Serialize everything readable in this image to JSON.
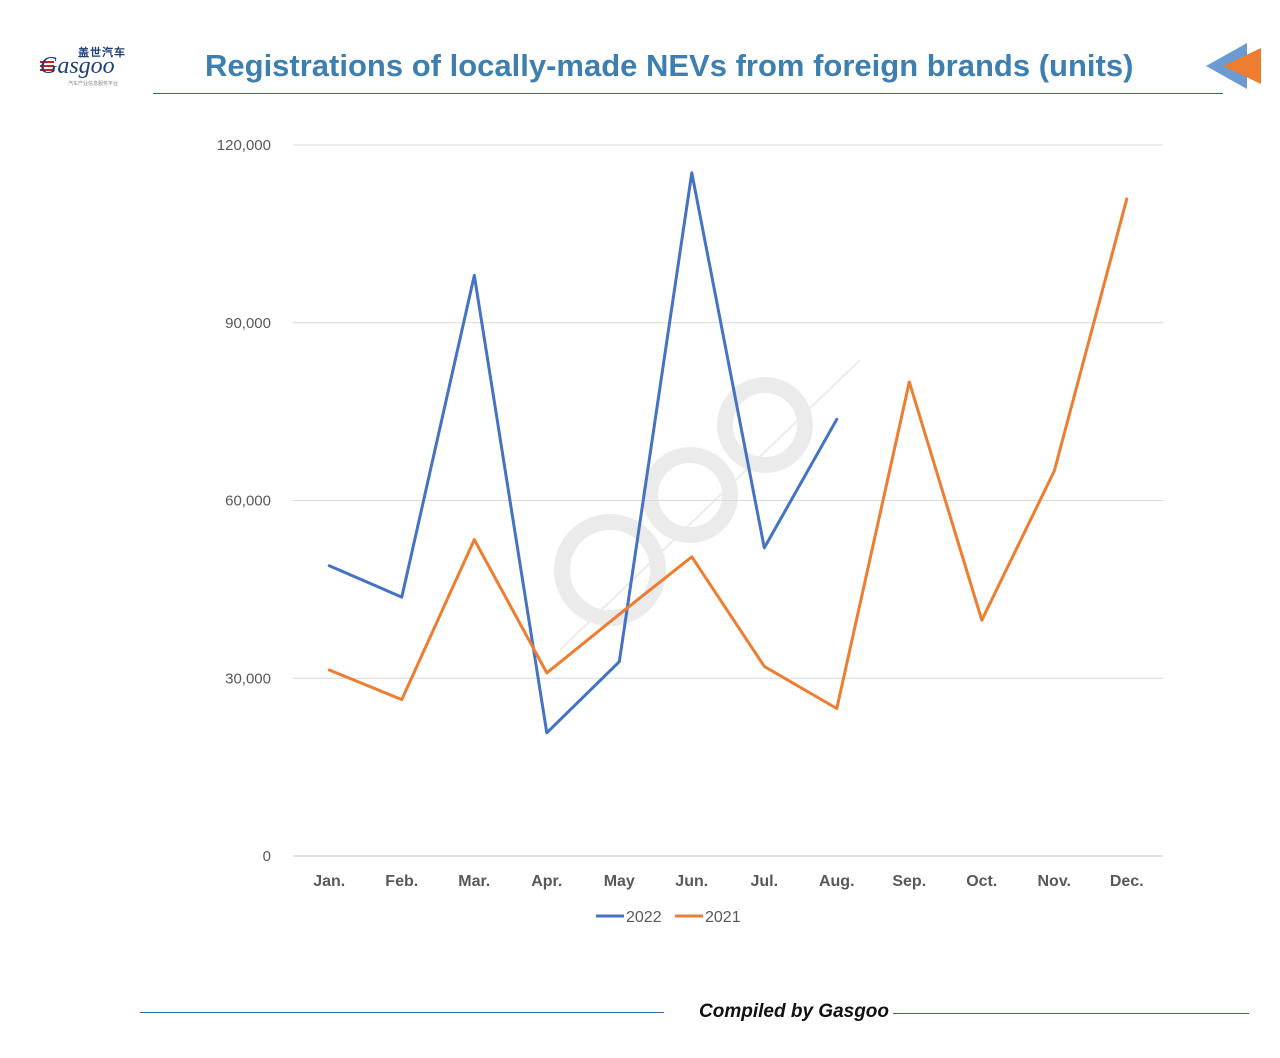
{
  "header": {
    "title": "Registrations of  locally-made NEVs from foreign brands (units)"
  },
  "logo": {
    "cn": "盖世汽车",
    "word": "Gasgoo",
    "sub": "汽车产业信息服务平台"
  },
  "footer": {
    "credit": "Compiled by Gasgoo"
  },
  "chart_data": {
    "type": "line",
    "title": "Registrations of  locally-made NEVs from foreign brands (units)",
    "xlabel": "",
    "ylabel": "",
    "categories": [
      "Jan.",
      "Feb.",
      "Mar.",
      "Apr.",
      "May",
      "Jun.",
      "Jul.",
      "Aug.",
      "Sep.",
      "Oct.",
      "Nov.",
      "Dec."
    ],
    "y_ticks": [
      0,
      30000,
      60000,
      90000,
      120000
    ],
    "y_tick_labels": [
      "0",
      "30,000",
      "60,000",
      "90,000",
      "120,000"
    ],
    "ylim": [
      0,
      120000
    ],
    "grid": "horizontal",
    "legend_position": "bottom",
    "series": [
      {
        "name": "2022",
        "color": "#4472c4",
        "values": [
          49000,
          43700,
          98000,
          20800,
          32800,
          115300,
          52000,
          73700,
          null,
          null,
          null,
          null
        ]
      },
      {
        "name": "2021",
        "color": "#ed7d31",
        "values": [
          31400,
          26400,
          53400,
          30900,
          40800,
          50500,
          32000,
          24900,
          80000,
          39800,
          65000,
          110900
        ]
      }
    ]
  }
}
